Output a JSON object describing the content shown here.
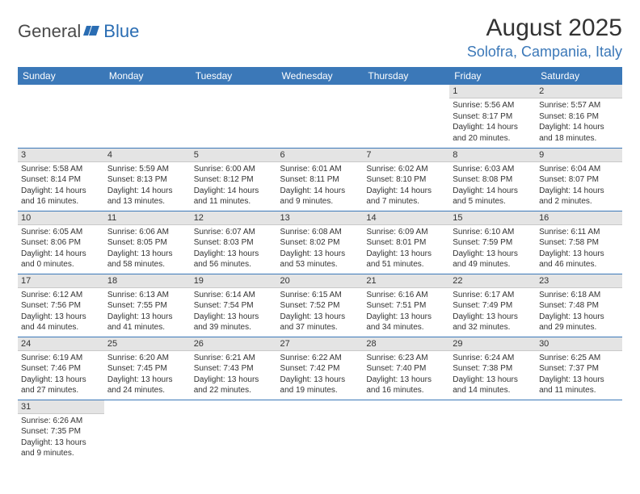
{
  "logo": {
    "text1": "General",
    "text2": "Blue"
  },
  "title": "August 2025",
  "location": "Solofra, Campania, Italy",
  "colors": {
    "header_bg": "#3b78b8",
    "header_text": "#ffffff",
    "daynum_bg": "#e4e4e4",
    "border": "#3b78b8",
    "logo_gray": "#4a4a4a",
    "logo_blue": "#2a6db3"
  },
  "weekdays": [
    "Sunday",
    "Monday",
    "Tuesday",
    "Wednesday",
    "Thursday",
    "Friday",
    "Saturday"
  ],
  "weeks": [
    [
      null,
      null,
      null,
      null,
      null,
      {
        "n": "1",
        "sunrise": "Sunrise: 5:56 AM",
        "sunset": "Sunset: 8:17 PM",
        "daylight": "Daylight: 14 hours and 20 minutes."
      },
      {
        "n": "2",
        "sunrise": "Sunrise: 5:57 AM",
        "sunset": "Sunset: 8:16 PM",
        "daylight": "Daylight: 14 hours and 18 minutes."
      }
    ],
    [
      {
        "n": "3",
        "sunrise": "Sunrise: 5:58 AM",
        "sunset": "Sunset: 8:14 PM",
        "daylight": "Daylight: 14 hours and 16 minutes."
      },
      {
        "n": "4",
        "sunrise": "Sunrise: 5:59 AM",
        "sunset": "Sunset: 8:13 PM",
        "daylight": "Daylight: 14 hours and 13 minutes."
      },
      {
        "n": "5",
        "sunrise": "Sunrise: 6:00 AM",
        "sunset": "Sunset: 8:12 PM",
        "daylight": "Daylight: 14 hours and 11 minutes."
      },
      {
        "n": "6",
        "sunrise": "Sunrise: 6:01 AM",
        "sunset": "Sunset: 8:11 PM",
        "daylight": "Daylight: 14 hours and 9 minutes."
      },
      {
        "n": "7",
        "sunrise": "Sunrise: 6:02 AM",
        "sunset": "Sunset: 8:10 PM",
        "daylight": "Daylight: 14 hours and 7 minutes."
      },
      {
        "n": "8",
        "sunrise": "Sunrise: 6:03 AM",
        "sunset": "Sunset: 8:08 PM",
        "daylight": "Daylight: 14 hours and 5 minutes."
      },
      {
        "n": "9",
        "sunrise": "Sunrise: 6:04 AM",
        "sunset": "Sunset: 8:07 PM",
        "daylight": "Daylight: 14 hours and 2 minutes."
      }
    ],
    [
      {
        "n": "10",
        "sunrise": "Sunrise: 6:05 AM",
        "sunset": "Sunset: 8:06 PM",
        "daylight": "Daylight: 14 hours and 0 minutes."
      },
      {
        "n": "11",
        "sunrise": "Sunrise: 6:06 AM",
        "sunset": "Sunset: 8:05 PM",
        "daylight": "Daylight: 13 hours and 58 minutes."
      },
      {
        "n": "12",
        "sunrise": "Sunrise: 6:07 AM",
        "sunset": "Sunset: 8:03 PM",
        "daylight": "Daylight: 13 hours and 56 minutes."
      },
      {
        "n": "13",
        "sunrise": "Sunrise: 6:08 AM",
        "sunset": "Sunset: 8:02 PM",
        "daylight": "Daylight: 13 hours and 53 minutes."
      },
      {
        "n": "14",
        "sunrise": "Sunrise: 6:09 AM",
        "sunset": "Sunset: 8:01 PM",
        "daylight": "Daylight: 13 hours and 51 minutes."
      },
      {
        "n": "15",
        "sunrise": "Sunrise: 6:10 AM",
        "sunset": "Sunset: 7:59 PM",
        "daylight": "Daylight: 13 hours and 49 minutes."
      },
      {
        "n": "16",
        "sunrise": "Sunrise: 6:11 AM",
        "sunset": "Sunset: 7:58 PM",
        "daylight": "Daylight: 13 hours and 46 minutes."
      }
    ],
    [
      {
        "n": "17",
        "sunrise": "Sunrise: 6:12 AM",
        "sunset": "Sunset: 7:56 PM",
        "daylight": "Daylight: 13 hours and 44 minutes."
      },
      {
        "n": "18",
        "sunrise": "Sunrise: 6:13 AM",
        "sunset": "Sunset: 7:55 PM",
        "daylight": "Daylight: 13 hours and 41 minutes."
      },
      {
        "n": "19",
        "sunrise": "Sunrise: 6:14 AM",
        "sunset": "Sunset: 7:54 PM",
        "daylight": "Daylight: 13 hours and 39 minutes."
      },
      {
        "n": "20",
        "sunrise": "Sunrise: 6:15 AM",
        "sunset": "Sunset: 7:52 PM",
        "daylight": "Daylight: 13 hours and 37 minutes."
      },
      {
        "n": "21",
        "sunrise": "Sunrise: 6:16 AM",
        "sunset": "Sunset: 7:51 PM",
        "daylight": "Daylight: 13 hours and 34 minutes."
      },
      {
        "n": "22",
        "sunrise": "Sunrise: 6:17 AM",
        "sunset": "Sunset: 7:49 PM",
        "daylight": "Daylight: 13 hours and 32 minutes."
      },
      {
        "n": "23",
        "sunrise": "Sunrise: 6:18 AM",
        "sunset": "Sunset: 7:48 PM",
        "daylight": "Daylight: 13 hours and 29 minutes."
      }
    ],
    [
      {
        "n": "24",
        "sunrise": "Sunrise: 6:19 AM",
        "sunset": "Sunset: 7:46 PM",
        "daylight": "Daylight: 13 hours and 27 minutes."
      },
      {
        "n": "25",
        "sunrise": "Sunrise: 6:20 AM",
        "sunset": "Sunset: 7:45 PM",
        "daylight": "Daylight: 13 hours and 24 minutes."
      },
      {
        "n": "26",
        "sunrise": "Sunrise: 6:21 AM",
        "sunset": "Sunset: 7:43 PM",
        "daylight": "Daylight: 13 hours and 22 minutes."
      },
      {
        "n": "27",
        "sunrise": "Sunrise: 6:22 AM",
        "sunset": "Sunset: 7:42 PM",
        "daylight": "Daylight: 13 hours and 19 minutes."
      },
      {
        "n": "28",
        "sunrise": "Sunrise: 6:23 AM",
        "sunset": "Sunset: 7:40 PM",
        "daylight": "Daylight: 13 hours and 16 minutes."
      },
      {
        "n": "29",
        "sunrise": "Sunrise: 6:24 AM",
        "sunset": "Sunset: 7:38 PM",
        "daylight": "Daylight: 13 hours and 14 minutes."
      },
      {
        "n": "30",
        "sunrise": "Sunrise: 6:25 AM",
        "sunset": "Sunset: 7:37 PM",
        "daylight": "Daylight: 13 hours and 11 minutes."
      }
    ],
    [
      {
        "n": "31",
        "sunrise": "Sunrise: 6:26 AM",
        "sunset": "Sunset: 7:35 PM",
        "daylight": "Daylight: 13 hours and 9 minutes."
      },
      null,
      null,
      null,
      null,
      null,
      null
    ]
  ]
}
